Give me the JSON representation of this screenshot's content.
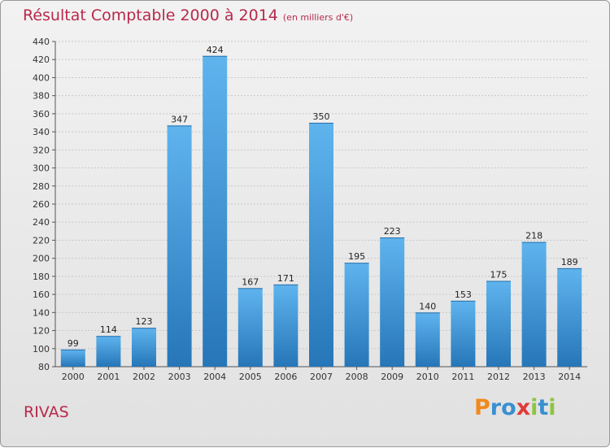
{
  "title": {
    "main": "Résultat Comptable 2000 à 2014",
    "unit": "(en milliers d'€)"
  },
  "commune": "RIVAS",
  "logo": {
    "text": "Proxiti",
    "letters": [
      "P",
      "r",
      "o",
      "x",
      "i",
      "t",
      "i"
    ],
    "colors": [
      "#f08a1c",
      "#3a8fd0",
      "#3a8fd0",
      "#e03a3a",
      "#8cc63f",
      "#3a8fd0",
      "#8cc63f"
    ]
  },
  "chart_data": {
    "type": "bar",
    "title": "Résultat Comptable 2000 à 2014",
    "ylabel": "en milliers d'€",
    "categories": [
      "2000",
      "2001",
      "2002",
      "2003",
      "2004",
      "2005",
      "2006",
      "2007",
      "2008",
      "2009",
      "2010",
      "2011",
      "2012",
      "2013",
      "2014"
    ],
    "values": [
      99,
      114,
      123,
      347,
      424,
      167,
      171,
      350,
      195,
      223,
      140,
      153,
      175,
      218,
      189
    ],
    "ylim": [
      80,
      440
    ],
    "yticks": [
      80,
      100,
      120,
      140,
      160,
      180,
      200,
      220,
      240,
      260,
      280,
      300,
      320,
      340,
      360,
      380,
      400,
      420,
      440
    ],
    "grid": true,
    "bar_color": "#3a96d8"
  }
}
